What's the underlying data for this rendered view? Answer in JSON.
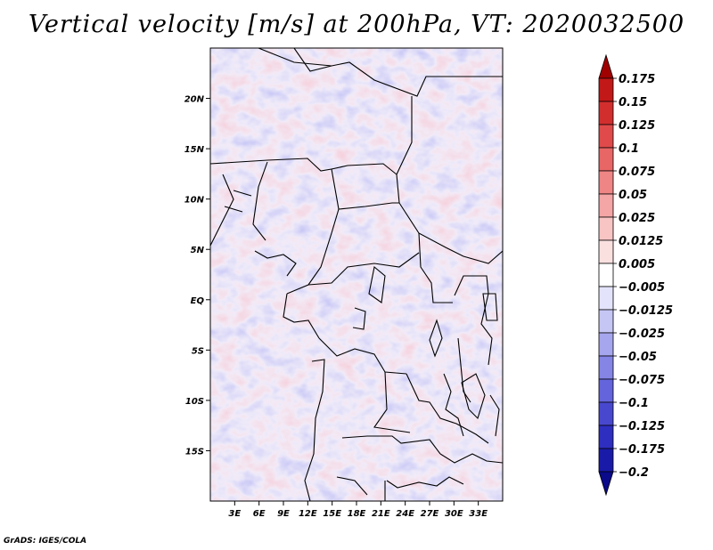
{
  "chart_data": {
    "type": "heatmap",
    "title": "Vertical velocity [m/s] at 200hPa, VT: 2020032500",
    "variable": "Vertical velocity",
    "units": "m/s",
    "level": "200hPa",
    "valid_time": "2020032500",
    "x_range": [
      0,
      36
    ],
    "y_range": [
      -20,
      25
    ],
    "x_ticks": [
      {
        "value": 3,
        "label": "3E"
      },
      {
        "value": 6,
        "label": "6E"
      },
      {
        "value": 9,
        "label": "9E"
      },
      {
        "value": 12,
        "label": "12E"
      },
      {
        "value": 15,
        "label": "15E"
      },
      {
        "value": 18,
        "label": "18E"
      },
      {
        "value": 21,
        "label": "21E"
      },
      {
        "value": 24,
        "label": "24E"
      },
      {
        "value": 27,
        "label": "27E"
      },
      {
        "value": 30,
        "label": "30E"
      },
      {
        "value": 33,
        "label": "33E"
      }
    ],
    "y_ticks": [
      {
        "value": 20,
        "label": "20N"
      },
      {
        "value": 15,
        "label": "15N"
      },
      {
        "value": 10,
        "label": "10N"
      },
      {
        "value": 5,
        "label": "5N"
      },
      {
        "value": 0,
        "label": "EQ"
      },
      {
        "value": -5,
        "label": "5S"
      },
      {
        "value": -10,
        "label": "10S"
      },
      {
        "value": -15,
        "label": "15S"
      }
    ],
    "colorbar": {
      "labels": [
        "0.175",
        "0.15",
        "0.125",
        "0.1",
        "0.075",
        "0.05",
        "0.025",
        "0.0125",
        "0.005",
        "−0.005",
        "−0.0125",
        "−0.025",
        "−0.05",
        "−0.075",
        "−0.1",
        "−0.125",
        "−0.175",
        "−0.2"
      ],
      "colors": [
        "#a00000",
        "#c21818",
        "#d22e2e",
        "#e04a4a",
        "#e86666",
        "#ef8585",
        "#f4a5a5",
        "#f8c4c4",
        "#fbe0e0",
        "#ffffff",
        "#e3e3fb",
        "#c6c6f5",
        "#a6a6ee",
        "#8585e6",
        "#6464dc",
        "#4848cf",
        "#2e2ec0",
        "#1a1aa8",
        "#0a0a8a"
      ]
    }
  },
  "credit": "GrADS: IGES/COLA"
}
